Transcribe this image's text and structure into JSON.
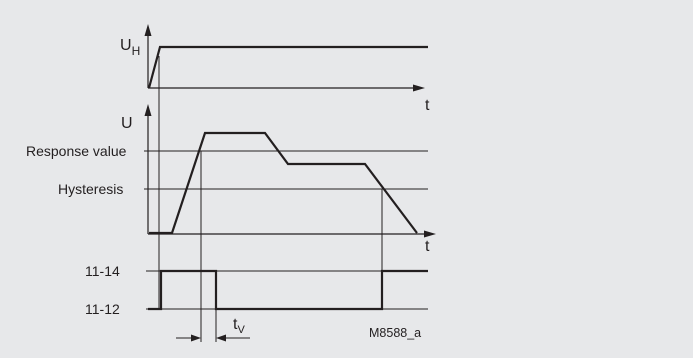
{
  "labels": {
    "uh_main": "U",
    "uh_sub": "H",
    "t_top": "t",
    "u": "U",
    "response_value": "Response value",
    "hysteresis": "Hysteresis",
    "t_mid": "t",
    "contact_1114": "11-14",
    "contact_1112": "11-12",
    "tv_main": "t",
    "tv_sub": "V",
    "figure_code": "M8588_a"
  },
  "colors": {
    "background": "#e7e8ea",
    "ink": "#231f20",
    "grid": "#ffffff"
  }
}
